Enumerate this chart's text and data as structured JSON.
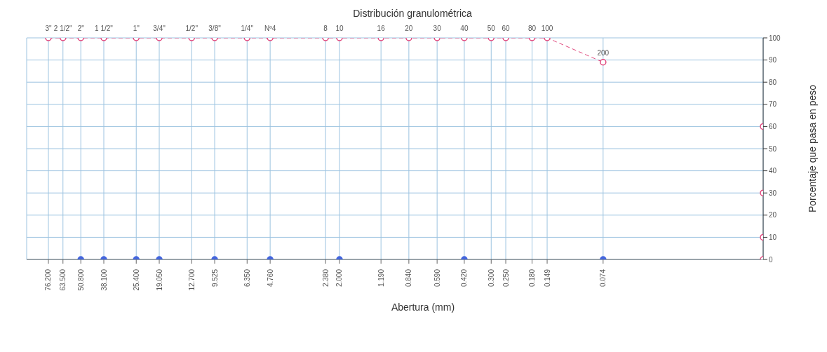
{
  "chart_data": {
    "type": "line",
    "title": "Distribución granulométrica",
    "xlabel": "Abertura (mm)",
    "ylabel": "Porcentaje que pasa en peso",
    "log": "x",
    "grid": true,
    "marker": "circle",
    "line_style": "dashed",
    "xlim": [
      100,
      0.01
    ],
    "ylim": [
      0,
      100
    ],
    "yticks": [
      0,
      10,
      20,
      30,
      40,
      50,
      60,
      70,
      80,
      90,
      100
    ],
    "xticks": [
      {
        "value": 76.2,
        "label": "76.200"
      },
      {
        "value": 63.5,
        "label": "63.500"
      },
      {
        "value": 50.8,
        "label": "50.800"
      },
      {
        "value": 38.1,
        "label": "38.100"
      },
      {
        "value": 25.4,
        "label": "25.400"
      },
      {
        "value": 19.05,
        "label": "19.050"
      },
      {
        "value": 12.7,
        "label": "12.700"
      },
      {
        "value": 9.525,
        "label": "9.525"
      },
      {
        "value": 6.35,
        "label": "6.350"
      },
      {
        "value": 4.76,
        "label": "4.760"
      },
      {
        "value": 2.38,
        "label": "2.380"
      },
      {
        "value": 2,
        "label": "2.000"
      },
      {
        "value": 1.19,
        "label": "1.190"
      },
      {
        "value": 0.84,
        "label": "0.840"
      },
      {
        "value": 0.59,
        "label": "0.590"
      },
      {
        "value": 0.42,
        "label": "0.420"
      },
      {
        "value": 0.3,
        "label": "0.300"
      },
      {
        "value": 0.25,
        "label": "0.250"
      },
      {
        "value": 0.18,
        "label": "0.180"
      },
      {
        "value": 0.149,
        "label": "0.149"
      },
      {
        "value": 0.074,
        "label": "0.074"
      }
    ],
    "annotations": [
      {
        "text": "3\"",
        "x": 76.2,
        "y": 100
      },
      {
        "text": "2 1/2\"",
        "x": 63.5,
        "y": 100
      },
      {
        "text": "2\"",
        "x": 50.8,
        "y": 100
      },
      {
        "text": "1 1/2\"",
        "x": 38.1,
        "y": 100
      },
      {
        "text": "1\"",
        "x": 25.4,
        "y": 100
      },
      {
        "text": "3/4\"",
        "x": 19.05,
        "y": 100
      },
      {
        "text": "1/2\"",
        "x": 12.7,
        "y": 100
      },
      {
        "text": "3/8\"",
        "x": 9.525,
        "y": 100
      },
      {
        "text": "1/4\"",
        "x": 6.35,
        "y": 100
      },
      {
        "text": "Nº4",
        "x": 4.76,
        "y": 100
      },
      {
        "text": "8",
        "x": 2.38,
        "y": 100
      },
      {
        "text": "10",
        "x": 2,
        "y": 100
      },
      {
        "text": "16",
        "x": 1.19,
        "y": 100
      },
      {
        "text": "20",
        "x": 0.84,
        "y": 100
      },
      {
        "text": "30",
        "x": 0.59,
        "y": 100
      },
      {
        "text": "40",
        "x": 0.42,
        "y": 100
      },
      {
        "text": "50",
        "x": 0.3,
        "y": 100
      },
      {
        "text": "60",
        "x": 0.25,
        "y": 100
      },
      {
        "text": "80",
        "x": 0.18,
        "y": 100
      },
      {
        "text": "100",
        "x": 0.149,
        "y": 100
      },
      {
        "text": "200",
        "x": 0.074,
        "y": 89
      }
    ],
    "series": [
      {
        "color": "#e0457b",
        "x": [
          76.2,
          63.5,
          50.8,
          38.1,
          25.4,
          19.05,
          12.7,
          9.525,
          6.35,
          4.76,
          2.38,
          2,
          1.19,
          0.84,
          0.59,
          0.42,
          0.3,
          0.25,
          0.18,
          0.149,
          0.074
        ],
        "values": [
          100,
          100,
          100,
          100,
          100,
          100,
          100,
          100,
          100,
          100,
          100,
          100,
          100,
          100,
          100,
          100,
          100,
          100,
          100,
          100,
          89
        ]
      },
      {
        "type": "scatter",
        "color": "#4466dd",
        "x": [
          50.8,
          38.1,
          25.4,
          19.05,
          9.525,
          4.76,
          2,
          0.42,
          0.074
        ],
        "values": [
          0,
          0,
          0,
          0,
          0,
          0,
          0,
          0,
          0
        ]
      },
      {
        "type": "scatter",
        "color": "#e0457b",
        "x": [
          0.01,
          0.01,
          0.01,
          0.01
        ],
        "values": [
          60,
          30,
          10,
          0
        ]
      }
    ]
  }
}
